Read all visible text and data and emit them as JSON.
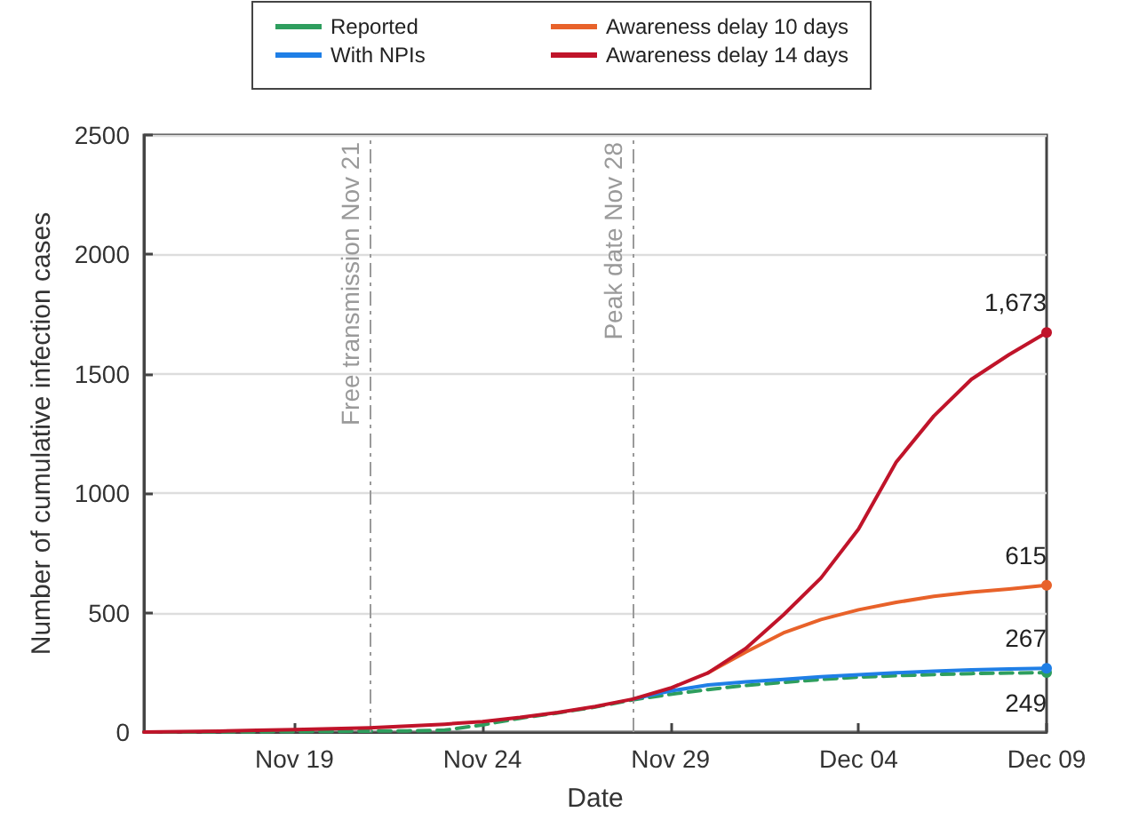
{
  "chart_data": {
    "type": "line",
    "xlabel": "Date",
    "ylabel": "Number of cumulative infection cases",
    "x": [
      "--11-15",
      "--11-16",
      "--11-17",
      "--11-18",
      "--11-19",
      "--11-20",
      "--11-21",
      "--11-22",
      "--11-23",
      "--11-24",
      "--11-25",
      "--11-26",
      "--11-27",
      "--11-28",
      "--11-29",
      "--11-30",
      "--12-01",
      "--12-02",
      "--12-03",
      "--12-04",
      "--12-05",
      "--12-06",
      "--12-07",
      "--12-08",
      "--12-09"
    ],
    "series": [
      {
        "name": "Reported",
        "color": "#2e9e5e",
        "line_style": "dashed",
        "values": [
          0,
          0,
          1,
          1,
          2,
          3,
          4,
          5,
          8,
          30,
          58,
          80,
          105,
          135,
          158,
          178,
          195,
          208,
          220,
          230,
          236,
          241,
          245,
          247,
          249
        ],
        "value_labels": [
          null,
          null,
          null,
          null,
          null,
          null,
          null,
          null,
          null,
          null,
          null,
          null,
          null,
          null,
          null,
          null,
          null,
          null,
          null,
          null,
          null,
          null,
          null,
          null,
          "249"
        ]
      },
      {
        "name": "With NPIs",
        "color": "#1f7fe6",
        "values": [
          null,
          null,
          null,
          null,
          null,
          null,
          null,
          null,
          null,
          null,
          null,
          null,
          null,
          138,
          172,
          197,
          210,
          220,
          232,
          240,
          248,
          255,
          260,
          264,
          267
        ],
        "value_labels": [
          null,
          null,
          null,
          null,
          null,
          null,
          null,
          null,
          null,
          null,
          null,
          null,
          null,
          null,
          null,
          null,
          null,
          null,
          null,
          null,
          null,
          null,
          null,
          null,
          "267"
        ]
      },
      {
        "name": "Awareness delay 10 days",
        "color": "#e8622a",
        "values": [
          null,
          null,
          null,
          null,
          null,
          null,
          null,
          null,
          null,
          null,
          null,
          null,
          null,
          null,
          null,
          248,
          335,
          415,
          471,
          512,
          543,
          568,
          586,
          599,
          615
        ],
        "value_labels": [
          null,
          null,
          null,
          null,
          null,
          null,
          null,
          null,
          null,
          null,
          null,
          null,
          null,
          null,
          null,
          null,
          null,
          null,
          null,
          null,
          null,
          null,
          null,
          null,
          "615"
        ]
      },
      {
        "name": "Awareness delay 14 days",
        "color": "#c0142a",
        "values": [
          0,
          2,
          4,
          7,
          10,
          14,
          18,
          25,
          33,
          44,
          61,
          82,
          107,
          138,
          184,
          248,
          350,
          490,
          645,
          850,
          1130,
          1323,
          1477,
          1580,
          1673
        ],
        "value_labels": [
          null,
          null,
          null,
          null,
          null,
          null,
          null,
          null,
          null,
          null,
          null,
          null,
          null,
          null,
          null,
          null,
          null,
          null,
          null,
          null,
          null,
          null,
          null,
          null,
          "1,673"
        ]
      }
    ],
    "xlim": [
      "--11-15",
      "--12-09"
    ],
    "xticks": [
      {
        "value": "--11-19",
        "label": "Nov 19"
      },
      {
        "value": "--11-24",
        "label": "Nov 24"
      },
      {
        "value": "--11-29",
        "label": "Nov 29"
      },
      {
        "value": "--12-04",
        "label": "Dec 04"
      },
      {
        "value": "--12-09",
        "label": "Dec 09"
      }
    ],
    "ylim": [
      0,
      2500
    ],
    "yticks": [
      0,
      500,
      1000,
      1500,
      2000,
      2500
    ],
    "ref_lines": [
      {
        "axis": "x",
        "value": "--11-21",
        "label": "Free transmission Nov 21",
        "color": "#9a9a9a",
        "line_style": "dashdot"
      },
      {
        "axis": "x",
        "value": "--11-28",
        "label": "Peak date Nov 28",
        "color": "#9a9a9a",
        "line_style": "dashdot"
      }
    ],
    "grid": "y",
    "legend": "top",
    "marker": "none",
    "line_style": "solid"
  }
}
